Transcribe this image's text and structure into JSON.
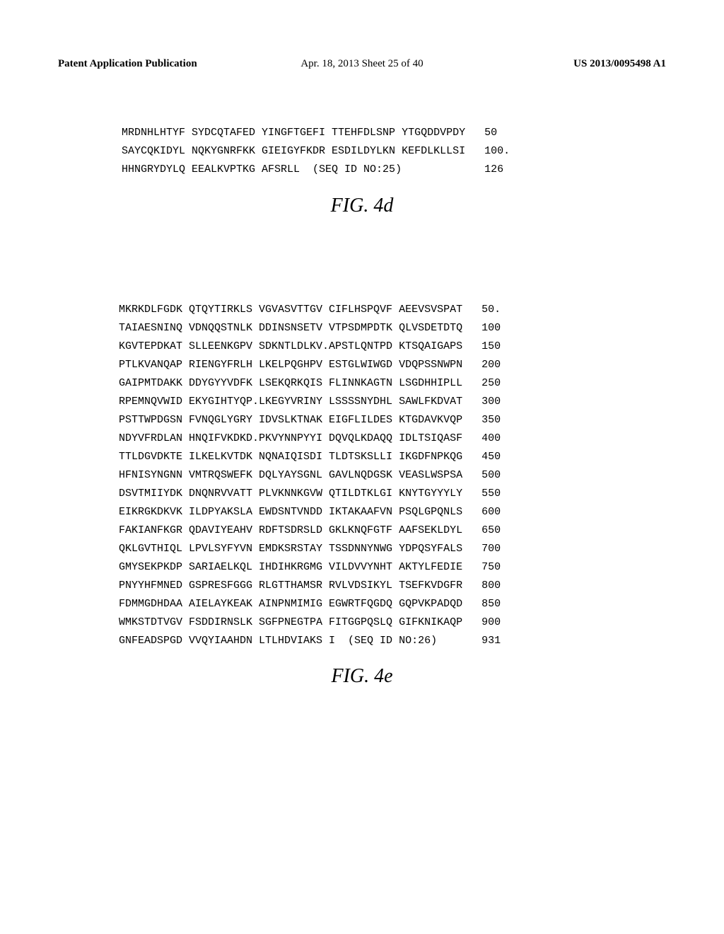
{
  "header": {
    "left": "Patent Application Publication",
    "center": "Apr. 18, 2013  Sheet 25 of 40",
    "right": "US 2013/0095498 A1"
  },
  "sequence1": {
    "lines": [
      {
        "text": "MRDNHLHTYF SYDCQTAFED YINGFTGEFI TTEHFDLSNP YTGQDDVPDY",
        "pos": "50"
      },
      {
        "text": "SAYCQKIDYL NQKYGNRFKK GIEIGYFKDR ESDILDYLKN KEFDLKLLSI",
        "pos": "100."
      },
      {
        "text": "HHNGRYDYLQ EEALKVPTKG AFSRLL  (SEQ ID NO:25)          ",
        "pos": "126"
      }
    ],
    "caption": "FIG.  4d"
  },
  "sequence2": {
    "lines": [
      {
        "text": "MKRKDLFGDK QTQYTIRKLS VGVASVTTGV CIFLHSPQVF AEEVSVSPAT",
        "pos": "50."
      },
      {
        "text": "TAIAESNINQ VDNQQSTNLK DDINSNSETV VTPSDMPDTK QLVSDETDTQ",
        "pos": "100"
      },
      {
        "text": "KGVTEPDKAT SLLEENKGPV SDKNTLDLKV.APSTLQNTPD KTSQAIGAPS",
        "pos": "150"
      },
      {
        "text": "PTLKVANQAP RIENGYFRLH LKELPQGHPV ESTGLWIWGD VDQPSSNWPN",
        "pos": "200"
      },
      {
        "text": "GAIPMTDAKK DDYGYYVDFK LSEKQRKQIS FLINNKAGTN LSGDHHIPLL",
        "pos": "250"
      },
      {
        "text": "RPEMNQVWID EKYGIHTYQP.LKEGYVRINY LSSSSNYDHL SAWLFKDVAT",
        "pos": "300"
      },
      {
        "text": "PSTTWPDGSN FVNQGLYGRY IDVSLKTNAK EIGFLILDES KTGDAVKVQP",
        "pos": "350"
      },
      {
        "text": "NDYVFRDLAN HNQIFVKDKD.PKVYNNPYYI DQVQLKDAQQ IDLTSIQASF",
        "pos": "400"
      },
      {
        "text": "TTLDGVDKTE ILKELKVTDK NQNAIQISDI TLDTSKSLLI IKGDFNPKQG",
        "pos": "450"
      },
      {
        "text": "HFNISYNGNN VMTRQSWEFK DQLYAYSGNL GAVLNQDGSK VEASLWSPSA",
        "pos": "500"
      },
      {
        "text": "DSVTMIIYDK DNQNRVVATT PLVKNNKGVW QTILDTKLGI KNYTGYYYLY",
        "pos": "550"
      },
      {
        "text": "EIKRGKDKVK ILDPYAKSLA EWDSNTVNDD IKTAKAAFVN PSQLGPQNLS",
        "pos": "600"
      },
      {
        "text": "FAKIANFKGR QDAVIYEAHV RDFTSDRSLD GKLKNQFGTF AAFSEKLDYL",
        "pos": "650"
      },
      {
        "text": "QKLGVTHIQL LPVLSYFYVN EMDKSRSTAY TSSDNNYNWG YDPQSYFALS",
        "pos": "700"
      },
      {
        "text": "GMYSEKPKDP SARIAELKQL IHDIHKRGMG VILDVVYNHT AKTYLFEDIE",
        "pos": "750"
      },
      {
        "text": "PNYYHFMNED GSPRESFGGG RLGTTHAMSR RVLVDSIKYL TSEFKVDGFR",
        "pos": "800"
      },
      {
        "text": "FDMMGDHDAA AIELAYKEAK AINPNMIMIG EGWRTFQGDQ GQPVKPADQD",
        "pos": "850"
      },
      {
        "text": "WMKSTDTVGV FSDDIRNSLK SGFPNEGTPA FITGGPQSLQ GIFKNIKAQP",
        "pos": "900"
      },
      {
        "text": "GNFEADSPGD VVQYIAAHDN LTLHDVIAKS I  (SEQ ID NO:26)    ",
        "pos": "931"
      }
    ],
    "caption": "FIG.  4e"
  }
}
